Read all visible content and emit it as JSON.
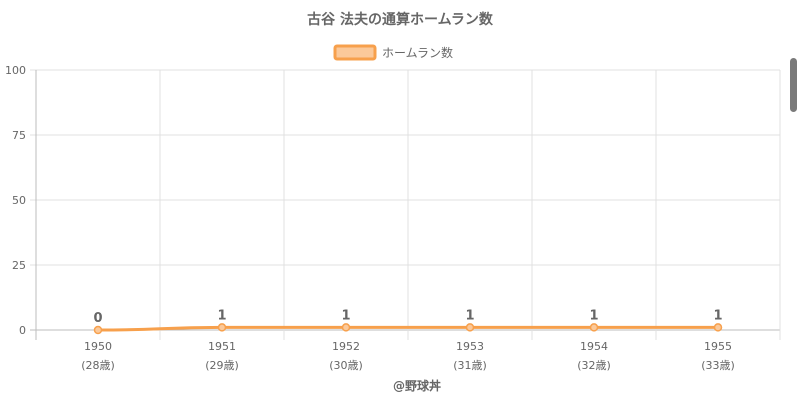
{
  "chart_data": {
    "type": "line",
    "title": "古谷 法夫の通算ホームラン数",
    "legend": {
      "position": "top",
      "label": "ホームラン数"
    },
    "categories": [
      "1950",
      "1951",
      "1952",
      "1953",
      "1954",
      "1955"
    ],
    "category_sublabels": [
      "(28歳)",
      "(29歳)",
      "(30歳)",
      "(31歳)",
      "(32歳)",
      "(33歳)"
    ],
    "series": [
      {
        "name": "ホームラン数",
        "values": [
          0,
          1,
          1,
          1,
          1,
          1
        ]
      }
    ],
    "data_labels": [
      "0",
      "1",
      "1",
      "1",
      "1",
      "1"
    ],
    "yticks": [
      0,
      25,
      50,
      75,
      100
    ],
    "ylim": [
      0,
      100
    ],
    "grid": true,
    "colors": {
      "line": "#f7a04c",
      "fill": "#fbc99a",
      "grid": "#e0e0e0",
      "text": "#666666"
    }
  },
  "footer": {
    "credit": "@野球丼"
  }
}
